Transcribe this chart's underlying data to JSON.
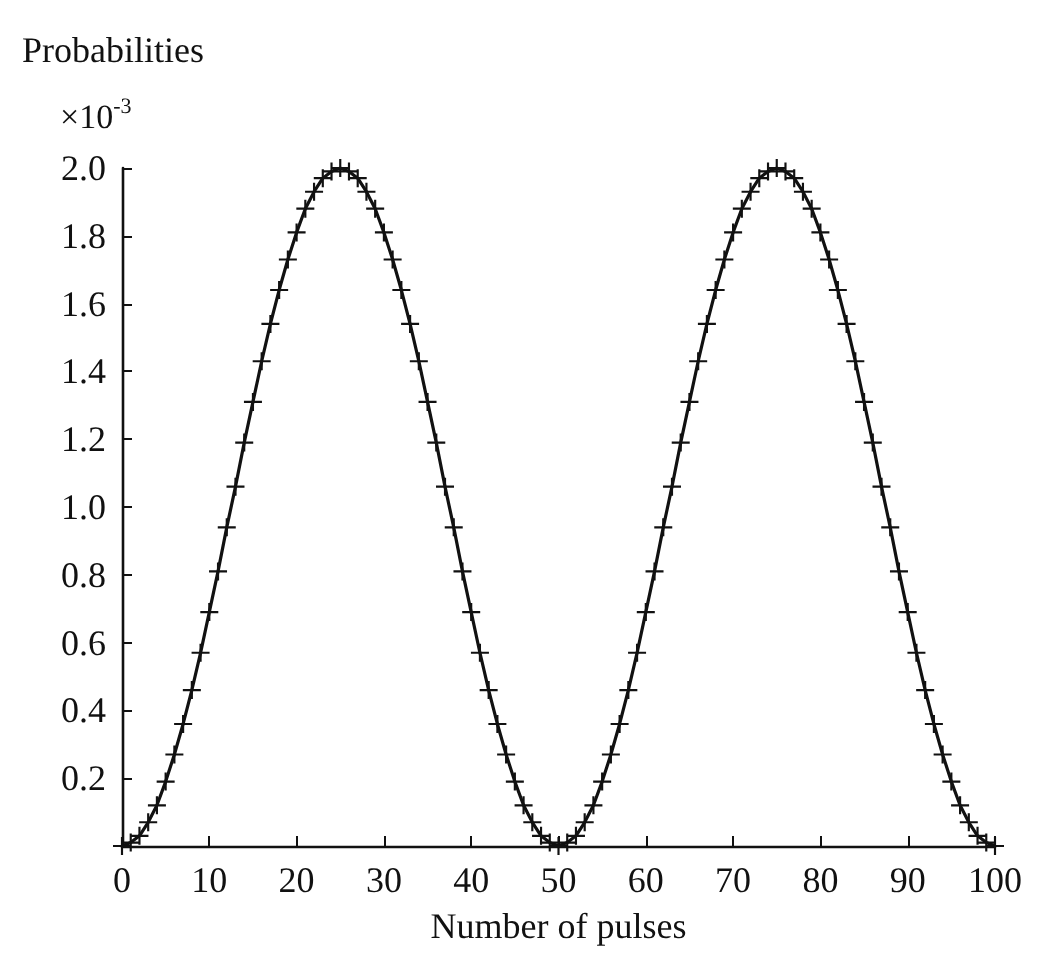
{
  "chart_data": {
    "type": "line",
    "xlabel": "Number of pulses",
    "ylabel": "Probabilities",
    "annotations": [
      "×10$^{-3}$"
    ],
    "x": [
      0,
      1,
      2,
      3,
      4,
      5,
      6,
      7,
      8,
      9,
      10,
      11,
      12,
      13,
      14,
      15,
      16,
      17,
      18,
      19,
      20,
      21,
      22,
      23,
      24,
      25,
      26,
      27,
      28,
      29,
      30,
      31,
      32,
      33,
      34,
      35,
      36,
      37,
      38,
      39,
      40,
      41,
      42,
      43,
      44,
      45,
      46,
      47,
      48,
      49,
      50,
      51,
      52,
      53,
      54,
      55,
      56,
      57,
      58,
      59,
      60,
      61,
      62,
      63,
      64,
      65,
      66,
      67,
      68,
      69,
      70,
      71,
      72,
      73,
      74,
      75,
      76,
      77,
      78,
      79,
      80,
      81,
      82,
      83,
      84,
      85,
      86,
      87,
      88,
      89,
      90,
      91,
      92,
      93,
      94,
      95,
      96,
      97,
      98,
      99,
      100
    ],
    "series": [
      {
        "color": "#111111",
        "values": [
          0,
          0.01,
          0.03,
          0.07,
          0.12,
          0.19,
          0.27,
          0.36,
          0.46,
          0.57,
          0.69,
          0.81,
          0.94,
          1.06,
          1.19,
          1.31,
          1.43,
          1.54,
          1.64,
          1.73,
          1.81,
          1.88,
          1.93,
          1.97,
          1.99,
          2.0,
          1.99,
          1.97,
          1.93,
          1.88,
          1.81,
          1.73,
          1.64,
          1.54,
          1.43,
          1.31,
          1.19,
          1.06,
          0.94,
          0.81,
          0.69,
          0.57,
          0.46,
          0.36,
          0.27,
          0.19,
          0.12,
          0.07,
          0.03,
          0.01,
          0,
          0.01,
          0.03,
          0.07,
          0.12,
          0.19,
          0.27,
          0.36,
          0.46,
          0.57,
          0.69,
          0.81,
          0.94,
          1.06,
          1.19,
          1.31,
          1.43,
          1.54,
          1.64,
          1.73,
          1.81,
          1.88,
          1.93,
          1.97,
          1.99,
          2.0,
          1.99,
          1.97,
          1.93,
          1.88,
          1.81,
          1.73,
          1.64,
          1.54,
          1.43,
          1.31,
          1.19,
          1.06,
          0.94,
          0.81,
          0.69,
          0.57,
          0.46,
          0.36,
          0.27,
          0.19,
          0.12,
          0.07,
          0.03,
          0.01,
          0
        ]
      }
    ],
    "xlim": [
      0,
      100
    ],
    "xticks": [
      0,
      10,
      20,
      30,
      40,
      50,
      60,
      70,
      80,
      90,
      100
    ],
    "ylim": [
      0,
      2.0
    ],
    "yticks": [
      {
        "value": 0,
        "label": null
      },
      {
        "value": 0.2,
        "label": "0.2"
      },
      {
        "value": 0.4,
        "label": "0.4"
      },
      {
        "value": 0.6,
        "label": "0.6"
      },
      {
        "value": 0.8,
        "label": "0.8"
      },
      {
        "value": 1.0,
        "label": "1.0"
      },
      {
        "value": 1.2,
        "label": "1.2"
      },
      {
        "value": 1.4,
        "label": "1.4"
      },
      {
        "value": 1.6,
        "label": "1.6"
      },
      {
        "value": 1.8,
        "label": "1.8"
      },
      {
        "value": 2.0,
        "label": "2.0"
      }
    ],
    "grid": false,
    "marker": "cross",
    "line_style": "solid"
  }
}
